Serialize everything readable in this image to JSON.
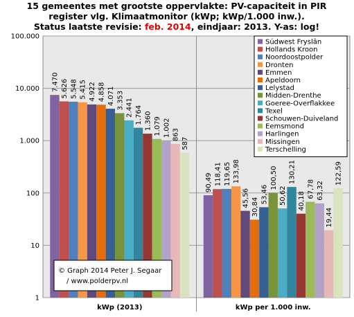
{
  "chart_data": {
    "type": "bar",
    "title_lines": [
      "15 gemeentes met grootste oppervlakte: PV-capaciteit in PIR",
      "register vlg. Klimaatmonitor  (kWp; kWp/1.000 inw.)."
    ],
    "title_status": [
      "Status laatste revisie: ",
      "feb. 2014",
      ", eindjaar: 2013. Y-as: log!"
    ],
    "title_highlight_color": "#e00000",
    "categories": [
      "kWp (2013)",
      "kWp per 1.000 inw."
    ],
    "log_scale": true,
    "grid": true,
    "legend_position": "top-right",
    "ylim": [
      1,
      100000
    ],
    "yticks": [
      {
        "value": 1,
        "label": "1"
      },
      {
        "value": 10,
        "label": "10"
      },
      {
        "value": 100,
        "label": "100"
      },
      {
        "value": 1000,
        "label": "1.000"
      },
      {
        "value": 10000,
        "label": "10.000"
      },
      {
        "value": 100000,
        "label": "100.000"
      }
    ],
    "series": [
      {
        "name": "Súdwest Fryslân",
        "color": "#8064a2",
        "values": [
          7470,
          90.49
        ],
        "value_labels": [
          "7.470",
          "90,49"
        ],
        "label_color": "#e00000"
      },
      {
        "name": "Hollands Kroon",
        "color": "#c0504d",
        "values": [
          5626,
          118.41
        ],
        "value_labels": [
          "5.626",
          "118,41"
        ]
      },
      {
        "name": "Noordoostpolder",
        "color": "#4f81bd",
        "values": [
          5548,
          119.65
        ],
        "value_labels": [
          "5.548",
          "119,65"
        ]
      },
      {
        "name": "Dronten",
        "color": "#f79646",
        "values": [
          5415,
          133.98
        ],
        "value_labels": [
          "5.415",
          "133,98"
        ],
        "label_color": "#e00000"
      },
      {
        "name": "Emmen",
        "color": "#604a7b",
        "values": [
          4922,
          45.56
        ],
        "value_labels": [
          "4.922",
          "45,56"
        ]
      },
      {
        "name": "Apeldoorn",
        "color": "#e46c0a",
        "values": [
          4858,
          30.84
        ],
        "value_labels": [
          "4.858",
          "30,84"
        ]
      },
      {
        "name": "Lelystad",
        "color": "#376092",
        "values": [
          4071,
          53.46
        ],
        "value_labels": [
          "4.071",
          "53,46"
        ]
      },
      {
        "name": "Midden-Drenthe",
        "color": "#77933c",
        "values": [
          3353,
          100.5
        ],
        "value_labels": [
          "3.353",
          "100,50"
        ]
      },
      {
        "name": "Goeree-Overflakkee",
        "color": "#4bacc6",
        "values": [
          2441,
          50.62
        ],
        "value_labels": [
          "2.441",
          "50,62"
        ]
      },
      {
        "name": "Texel",
        "color": "#31859c",
        "values": [
          1764,
          130.21
        ],
        "value_labels": [
          "1.764",
          "130,21"
        ]
      },
      {
        "name": "Schouwen-Duiveland",
        "color": "#953735",
        "values": [
          1360,
          40.18
        ],
        "value_labels": [
          "1.360",
          "40,18"
        ]
      },
      {
        "name": "Eemsmond",
        "color": "#9bbb59",
        "values": [
          1079,
          67.78
        ],
        "value_labels": [
          "1.079",
          "67,78"
        ]
      },
      {
        "name": "Harlingen",
        "color": "#b3a2c7",
        "values": [
          1002,
          63.32
        ],
        "value_labels": [
          "1.002",
          "63,32"
        ]
      },
      {
        "name": "Missingen",
        "color": "#e6b9b8",
        "values": [
          863,
          19.44
        ],
        "value_labels": [
          "863",
          "19,44"
        ]
      },
      {
        "name": "Terschelling",
        "color": "#d7e4bd",
        "values": [
          587,
          122.59
        ],
        "value_labels": [
          "587",
          "122,59"
        ]
      }
    ],
    "footnote": [
      "© Graph 2014 Peter J. Segaar",
      "/ www.polderpv.nl"
    ]
  }
}
